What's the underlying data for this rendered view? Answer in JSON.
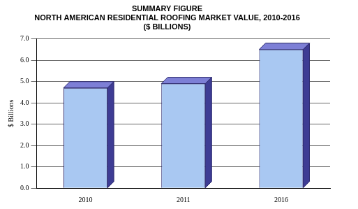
{
  "chart_data": {
    "type": "bar",
    "title": [
      "SUMMARY FIGURE",
      "NORTH AMERICAN RESIDENTIAL ROOFING MARKET VALUE, 2010-2016",
      "($ BILLIONS)"
    ],
    "y_label": "$ Billions",
    "categories": [
      "2010",
      "2011",
      "2016"
    ],
    "values": [
      4.7,
      4.9,
      6.5
    ],
    "color": "#a9c8f2",
    "ylim": [
      0,
      7
    ],
    "yticks": [
      {
        "value": 0,
        "label": "0.0"
      },
      {
        "value": 1,
        "label": "1.0"
      },
      {
        "value": 2,
        "label": "2.0"
      },
      {
        "value": 3,
        "label": "3.0"
      },
      {
        "value": 4,
        "label": "4.0"
      },
      {
        "value": 5,
        "label": "5.0"
      },
      {
        "value": 6,
        "label": "6.0"
      },
      {
        "value": 7,
        "label": "7.0"
      }
    ],
    "grid": true
  }
}
